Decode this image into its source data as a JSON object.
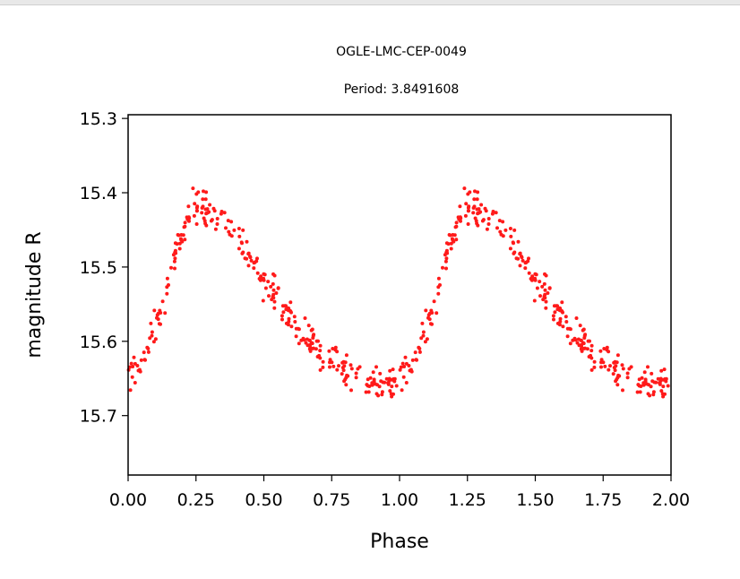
{
  "chart_data": {
    "type": "scatter",
    "title": "OGLE-LMC-CEP-0049",
    "subtitle": "Period: 3.8491608",
    "xlabel": "Phase",
    "ylabel": "magnitude R",
    "xlim": [
      0.0,
      2.0
    ],
    "ylim": [
      15.78,
      15.295
    ],
    "y_inverted": true,
    "xticks": [
      "0.00",
      "0.25",
      "0.50",
      "0.75",
      "1.00",
      "1.25",
      "1.50",
      "1.75",
      "2.00"
    ],
    "yticks": [
      "15.3",
      "15.4",
      "15.5",
      "15.6",
      "15.7"
    ],
    "grid": false,
    "legend": "none",
    "marker_color": "#ff1a1a",
    "series": [
      {
        "phase": [
          0.0,
          0.02,
          0.04,
          0.06,
          0.08,
          0.1,
          0.12,
          0.14,
          0.16,
          0.18,
          0.2,
          0.22,
          0.24,
          0.26,
          0.28,
          0.3,
          0.32,
          0.34,
          0.36,
          0.38,
          0.4,
          0.42,
          0.44,
          0.46,
          0.48,
          0.5,
          0.52,
          0.54,
          0.56,
          0.58,
          0.6,
          0.62,
          0.64,
          0.66,
          0.68,
          0.7,
          0.72,
          0.74,
          0.76,
          0.78,
          0.8,
          0.82,
          0.84,
          0.86,
          0.88,
          0.9,
          0.92,
          0.94,
          0.96,
          0.98
        ],
        "magnitude": [
          15.65,
          15.645,
          15.635,
          15.62,
          15.6,
          15.58,
          15.56,
          15.535,
          15.505,
          15.475,
          15.45,
          15.43,
          15.42,
          15.415,
          15.42,
          15.425,
          15.43,
          15.435,
          15.44,
          15.45,
          15.46,
          15.47,
          15.48,
          15.495,
          15.51,
          15.52,
          15.53,
          15.54,
          15.55,
          15.56,
          15.565,
          15.575,
          15.585,
          15.595,
          15.605,
          15.61,
          15.62,
          15.625,
          15.63,
          15.635,
          15.64,
          15.645,
          15.648,
          15.65,
          15.655,
          15.658,
          15.66,
          15.66,
          15.655,
          15.652
        ]
      }
    ]
  }
}
